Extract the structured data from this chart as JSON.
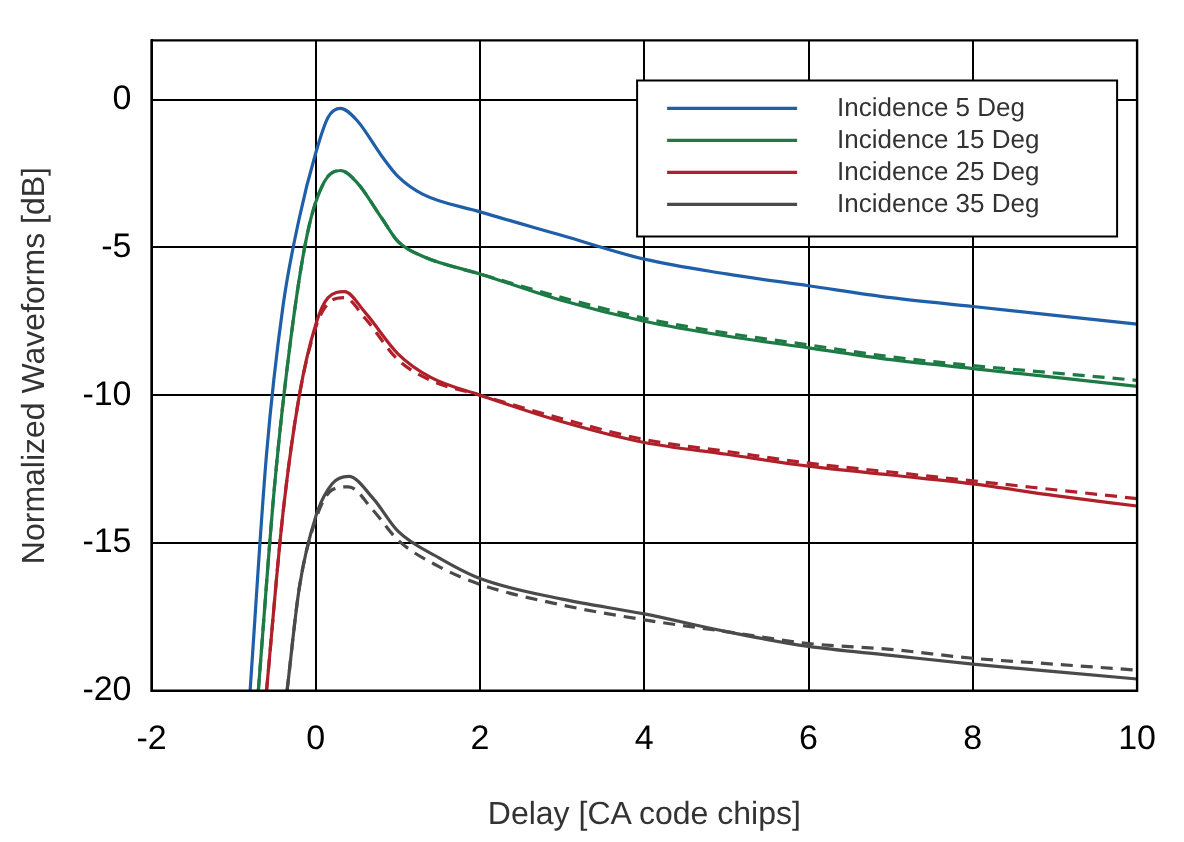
{
  "chart_data": {
    "type": "line",
    "xlabel": "Delay [CA code chips]",
    "ylabel": "Normalized Waveforms [dB]",
    "xlim": [
      -2,
      10
    ],
    "xticks": [
      -2,
      0,
      2,
      4,
      6,
      8,
      10
    ],
    "ylim": [
      -20,
      2
    ],
    "yticks": [
      -20,
      -15,
      -10,
      -5,
      0
    ],
    "grid": true,
    "legend": "top right",
    "marker": "none",
    "series": [
      {
        "name": "Incidence 5 Deg",
        "color": "#1f5fa8",
        "line_style": "solid",
        "x": [
          -0.8,
          -0.6,
          -0.4,
          -0.2,
          0,
          0.15,
          0.3,
          0.5,
          0.8,
          1,
          1.3,
          2,
          3,
          4,
          5,
          6,
          7,
          8,
          9,
          10
        ],
        "values": [
          -20,
          -12,
          -7,
          -4,
          -1.8,
          -0.6,
          -0.3,
          -0.7,
          -1.9,
          -2.6,
          -3.2,
          -3.8,
          -4.6,
          -5.4,
          -5.9,
          -6.3,
          -6.7,
          -7.0,
          -7.3,
          -7.6
        ]
      },
      {
        "name": "Incidence 15 Deg",
        "color": "#1e7a45",
        "line_style": "solid",
        "x": [
          -0.7,
          -0.5,
          -0.3,
          -0.1,
          0.1,
          0.3,
          0.5,
          0.8,
          1,
          1.3,
          2,
          3,
          4,
          5,
          6,
          7,
          8,
          9,
          10
        ],
        "values": [
          -20,
          -13,
          -8,
          -4.5,
          -2.8,
          -2.4,
          -2.8,
          -4.0,
          -4.8,
          -5.3,
          -5.9,
          -6.8,
          -7.5,
          -8.0,
          -8.4,
          -8.8,
          -9.1,
          -9.4,
          -9.7
        ]
      },
      {
        "name": "Incidence 25 Deg",
        "color": "#b0202a",
        "line_style": "solid",
        "x": [
          -0.6,
          -0.4,
          -0.2,
          0,
          0.15,
          0.35,
          0.6,
          1,
          1.4,
          2,
          3,
          4,
          5,
          6,
          7,
          8,
          9,
          10
        ],
        "values": [
          -20,
          -14,
          -10,
          -7.6,
          -6.7,
          -6.5,
          -7.2,
          -8.6,
          -9.4,
          -10,
          -10.9,
          -11.6,
          -12.0,
          -12.4,
          -12.7,
          -13.0,
          -13.4,
          -13.75
        ]
      },
      {
        "name": "Incidence 35 Deg",
        "color": "#4a4a4a",
        "line_style": "solid",
        "x": [
          -0.35,
          -0.2,
          0,
          0.2,
          0.4,
          0.7,
          1,
          1.5,
          2,
          3,
          4,
          5,
          6,
          7,
          8,
          9,
          10
        ],
        "values": [
          -20,
          -16.5,
          -14.1,
          -13.0,
          -12.75,
          -13.5,
          -14.6,
          -15.5,
          -16.2,
          -16.9,
          -17.4,
          -18.0,
          -18.5,
          -18.8,
          -19.1,
          -19.35,
          -19.6
        ]
      },
      {
        "color": "#1e7a45",
        "line_style": "dashed",
        "x": [
          -0.7,
          -0.5,
          -0.3,
          -0.1,
          0.1,
          0.3,
          0.5,
          0.8,
          1,
          1.3,
          2,
          3,
          4,
          5,
          6,
          7,
          8,
          9,
          10
        ],
        "values": [
          -20,
          -13,
          -8,
          -4.5,
          -2.8,
          -2.4,
          -2.8,
          -4.0,
          -4.8,
          -5.3,
          -5.9,
          -6.7,
          -7.4,
          -7.9,
          -8.3,
          -8.7,
          -9.0,
          -9.25,
          -9.5
        ]
      },
      {
        "color": "#b0202a",
        "line_style": "dashed",
        "x": [
          -0.6,
          -0.4,
          -0.2,
          0,
          0.15,
          0.35,
          0.6,
          1,
          1.4,
          2,
          3,
          4,
          5,
          6,
          7,
          8,
          9,
          10
        ],
        "values": [
          -20,
          -14,
          -10,
          -7.7,
          -6.9,
          -6.7,
          -7.4,
          -8.8,
          -9.5,
          -10,
          -10.8,
          -11.5,
          -11.9,
          -12.3,
          -12.6,
          -12.9,
          -13.2,
          -13.5
        ]
      },
      {
        "color": "#4a4a4a",
        "line_style": "dashed",
        "x": [
          -0.35,
          -0.2,
          0,
          0.2,
          0.4,
          0.7,
          1,
          1.5,
          2,
          3,
          4,
          5,
          6,
          7,
          8,
          9,
          10
        ],
        "values": [
          -20,
          -16.5,
          -14.2,
          -13.2,
          -13.1,
          -13.9,
          -14.9,
          -15.8,
          -16.4,
          -17.1,
          -17.6,
          -18.0,
          -18.4,
          -18.6,
          -18.9,
          -19.1,
          -19.3
        ]
      }
    ]
  }
}
